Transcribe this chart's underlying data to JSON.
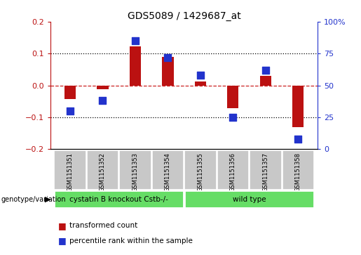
{
  "title": "GDS5089 / 1429687_at",
  "samples": [
    "GSM1151351",
    "GSM1151352",
    "GSM1151353",
    "GSM1151354",
    "GSM1151355",
    "GSM1151356",
    "GSM1151357",
    "GSM1151358"
  ],
  "red_values": [
    -0.042,
    -0.012,
    0.122,
    0.09,
    0.012,
    -0.072,
    0.03,
    -0.13
  ],
  "blue_values": [
    30,
    38,
    85,
    72,
    58,
    25,
    62,
    8
  ],
  "ylim": [
    -0.2,
    0.2
  ],
  "right_ylim": [
    0,
    100
  ],
  "right_yticks": [
    0,
    25,
    50,
    75,
    100
  ],
  "right_yticklabels": [
    "0",
    "25",
    "50",
    "75",
    "100%"
  ],
  "left_yticks": [
    -0.2,
    -0.1,
    0.0,
    0.1,
    0.2
  ],
  "dotted_lines": [
    -0.1,
    0.1
  ],
  "zero_line": 0.0,
  "red_color": "#BB1111",
  "blue_color": "#2233CC",
  "dashed_zero_color": "#CC2222",
  "group1_label": "cystatin B knockout Cstb-/-",
  "group2_label": "wild type",
  "group1_count": 4,
  "group2_count": 4,
  "group_bg_color": "#66DD66",
  "sample_bg_color": "#C8C8C8",
  "legend_red_label": "transformed count",
  "legend_blue_label": "percentile rank within the sample",
  "genotype_label": "genotype/variation",
  "bar_width": 0.35,
  "blue_marker_size": 50
}
